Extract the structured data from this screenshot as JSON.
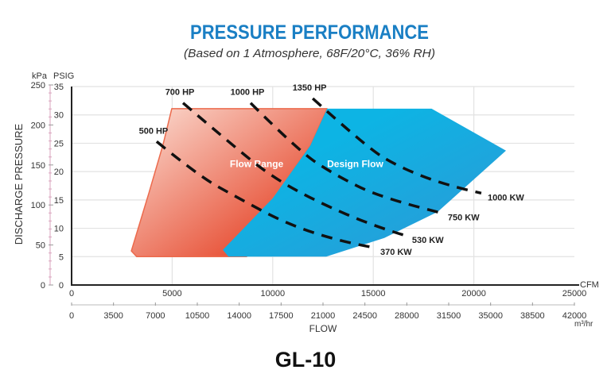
{
  "chart_data": {
    "type": "line",
    "title": "PRESSURE PERFORMANCE",
    "subtitle": "(Based on 1 Atmosphere, 68F/20°C, 36% RH)",
    "model_label": "GL-10",
    "xlabel": "FLOW",
    "ylabel": "DISCHARGE PRESSURE",
    "x_unit": "CFM",
    "x2_unit": "m³/hr",
    "y_unit": "PSIG",
    "y2_unit": "kPa",
    "xlim": [
      0,
      25000
    ],
    "ylim": [
      0,
      35
    ],
    "x_ticks": [
      0,
      5000,
      10000,
      15000,
      20000,
      25000
    ],
    "x2_lim": [
      0,
      42000
    ],
    "x2_ticks": [
      0,
      3500,
      7000,
      10500,
      14000,
      17500,
      21000,
      24500,
      28000,
      31500,
      35000,
      38500,
      42000
    ],
    "y_ticks": [
      0,
      5,
      10,
      15,
      20,
      25,
      30,
      35
    ],
    "y2_lim": [
      0,
      250
    ],
    "y2_ticks": [
      0,
      50,
      100,
      150,
      200,
      250
    ],
    "grid": true,
    "regions": [
      {
        "name": "Flow Range",
        "color_light": "#fbe0d6",
        "color_dark": "#e8553b",
        "points": [
          [
            4980,
            31.1
          ],
          [
            12700,
            31.1
          ],
          [
            11870,
            24.6
          ],
          [
            10000,
            15.3
          ],
          [
            8700,
            5.0
          ],
          [
            3240,
            5.0
          ],
          [
            2970,
            6.0
          ],
          [
            3840,
            16.2
          ],
          [
            4550,
            24.8
          ]
        ],
        "label_at": [
          9200,
          20.8
        ]
      },
      {
        "name": "Design Flow",
        "color_light": "#0db4e4",
        "color_dark": "#2e97d5",
        "points": [
          [
            12700,
            31.1
          ],
          [
            17900,
            31.1
          ],
          [
            21600,
            23.7
          ],
          [
            18200,
            12.9
          ],
          [
            15550,
            8.3
          ],
          [
            12660,
            5.0
          ],
          [
            7800,
            5.0
          ],
          [
            7520,
            6.2
          ],
          [
            10000,
            15.3
          ],
          [
            11870,
            24.6
          ]
        ],
        "label_at": [
          14100,
          20.8
        ]
      }
    ],
    "series": [
      {
        "name": "500 HP",
        "kw": "370 KW",
        "points": [
          [
            4230,
            25.3
          ],
          [
            6330,
            19.2
          ],
          [
            8310,
            15.3
          ],
          [
            10680,
            10.8
          ],
          [
            13450,
            7.6
          ],
          [
            15030,
            6.6
          ]
        ]
      },
      {
        "name": "700 HP",
        "kw": "530 KW",
        "points": [
          [
            5540,
            32.1
          ],
          [
            8310,
            23.7
          ],
          [
            10090,
            18.8
          ],
          [
            12260,
            14.6
          ],
          [
            15030,
            10.4
          ],
          [
            16610,
            8.7
          ]
        ]
      },
      {
        "name": "1000 HP",
        "kw": "750 KW",
        "points": [
          [
            8900,
            32.1
          ],
          [
            11270,
            23.7
          ],
          [
            13050,
            19.5
          ],
          [
            15430,
            15.3
          ],
          [
            18390,
            12.7
          ]
        ]
      },
      {
        "name": "1350 HP",
        "kw": "1000 KW",
        "points": [
          [
            11990,
            32.9
          ],
          [
            14640,
            24.4
          ],
          [
            16220,
            20.9
          ],
          [
            18590,
            17.6
          ],
          [
            20370,
            16.2
          ]
        ]
      }
    ]
  }
}
